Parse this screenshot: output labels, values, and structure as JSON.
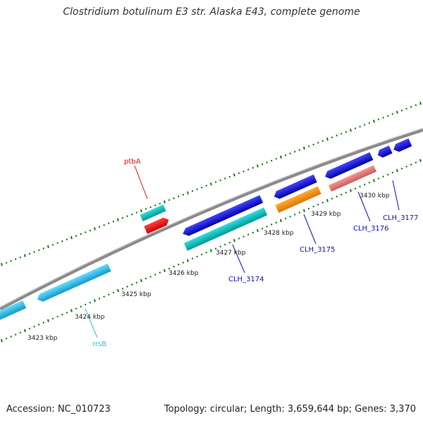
{
  "title": "Clostridium botulinum E3 str. Alaska E43, complete genome",
  "accession": "Accession: NC_010723",
  "topology": "Topology: circular; Length: 3,659,644 bp; Genes: 3,370",
  "ticks": [
    "3423 kbp",
    "3424 kbp",
    "3425 kbp",
    "3426 kbp",
    "3427 kbp",
    "3428 kbp",
    "3429 kbp",
    "3430 kbp"
  ],
  "genes": {
    "ptbA": "ptbA",
    "rrsB": "rrsB",
    "clh3174": "CLH_3174",
    "clh3175": "CLH_3175",
    "clh3176": "CLH_3176",
    "clh3177": "CLH_3177"
  },
  "colors": {
    "backbone": "#8a8a8a",
    "tick": "#1a7a1a",
    "cds_blue": "#1010cc",
    "rrna_lightblue": "#33bbee",
    "teal": "#11bbbb",
    "red": "#ee1111",
    "orange": "#ff8c00",
    "pink": "#e77a7a"
  }
}
